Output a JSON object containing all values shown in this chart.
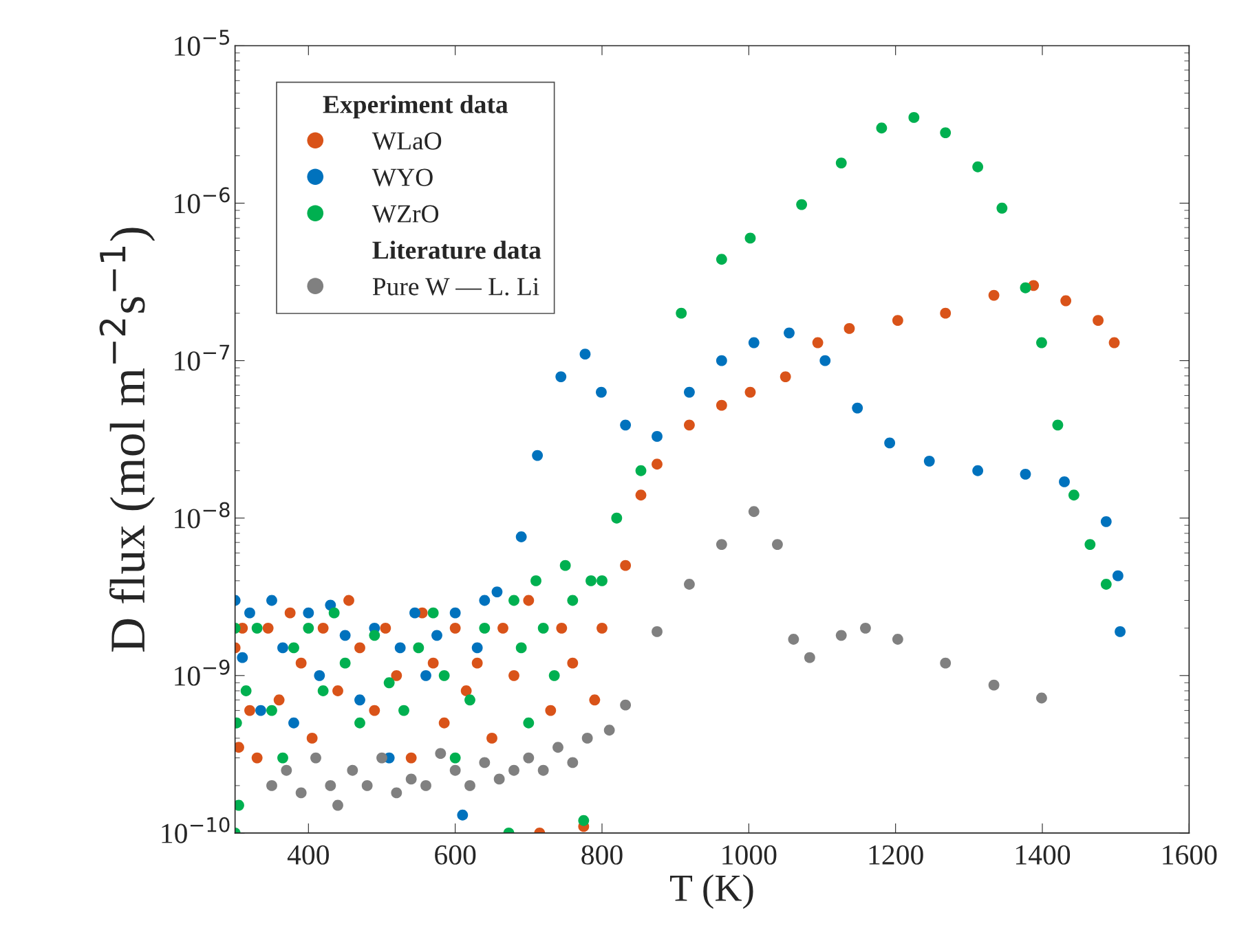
{
  "chart_data": {
    "type": "scatter",
    "xlabel": "T (K)",
    "ylabel": "D flux (mol m$^{−2}$s$^{−1}$)",
    "log": "y",
    "xlim": [
      300,
      1600
    ],
    "xticks": [
      400,
      600,
      800,
      1000,
      1200,
      1400,
      1600
    ],
    "ylim": [
      1e-10,
      1e-05
    ],
    "yticks": [
      {
        "value": 1e-10,
        "label": "10$^{−10}$"
      },
      {
        "value": 1e-09,
        "label": "10$^{−9}$"
      },
      {
        "value": 1e-08,
        "label": "10$^{−8}$"
      },
      {
        "value": 1e-07,
        "label": "10$^{−7}$"
      },
      {
        "value": 1e-06,
        "label": "10$^{−6}$"
      },
      {
        "value": 1e-05,
        "label": "10$^{−5}$"
      }
    ],
    "grid": false,
    "legend": "top left",
    "marker": "circle",
    "legend_title": "Experiment data",
    "annotations": [
      "Literature data"
    ],
    "series": [
      {
        "name": "WLaO",
        "color": "#d95319",
        "x": [
          300,
          305,
          310,
          320,
          330,
          345,
          360,
          375,
          390,
          405,
          420,
          440,
          455,
          470,
          490,
          505,
          520,
          540,
          555,
          570,
          585,
          600,
          615,
          630,
          650,
          665,
          680,
          700,
          715,
          730,
          745,
          760,
          775,
          790,
          800,
          832,
          853,
          875,
          919,
          963,
          1002,
          1050,
          1094,
          1137,
          1203,
          1268,
          1334,
          1388,
          1432,
          1476,
          1498
        ],
        "values": [
          1.5e-09,
          3.5e-10,
          2e-09,
          6e-10,
          3e-10,
          2e-09,
          7e-10,
          2.5e-09,
          1.2e-09,
          4e-10,
          2e-09,
          8e-10,
          3e-09,
          1.5e-09,
          6e-10,
          2e-09,
          1e-09,
          3e-10,
          2.5e-09,
          1.2e-09,
          5e-10,
          2e-09,
          8e-10,
          1.2e-09,
          4e-10,
          2e-09,
          1e-09,
          3e-09,
          1e-10,
          6e-10,
          2e-09,
          1.2e-09,
          1.1e-10,
          7e-10,
          2e-09,
          5e-09,
          1.4e-08,
          2.2e-08,
          3.9e-08,
          5.2e-08,
          6.3e-08,
          7.9e-08,
          1.3e-07,
          1.6e-07,
          1.8e-07,
          2e-07,
          2.6e-07,
          3e-07,
          2.4e-07,
          1.8e-07,
          1.3e-07
        ]
      },
      {
        "name": "WYO",
        "color": "#0072bd",
        "x": [
          300,
          310,
          320,
          335,
          350,
          365,
          380,
          400,
          415,
          430,
          450,
          470,
          490,
          510,
          525,
          545,
          560,
          575,
          600,
          610,
          630,
          640,
          657,
          690,
          712,
          744,
          777,
          799,
          832,
          875,
          919,
          963,
          1007,
          1055,
          1104,
          1148,
          1192,
          1246,
          1312,
          1377,
          1430,
          1487,
          1503,
          1506
        ],
        "values": [
          3e-09,
          1.3e-09,
          2.5e-09,
          6e-10,
          3e-09,
          1.5e-09,
          5e-10,
          2.5e-09,
          1e-09,
          2.8e-09,
          1.8e-09,
          7e-10,
          2e-09,
          3e-10,
          1.5e-09,
          2.5e-09,
          1e-09,
          1.8e-09,
          2.5e-09,
          1.3e-10,
          1.5e-09,
          3e-09,
          3.4e-09,
          7.6e-09,
          2.5e-08,
          7.9e-08,
          1.1e-07,
          6.3e-08,
          3.9e-08,
          3.3e-08,
          6.3e-08,
          1e-07,
          1.3e-07,
          1.5e-07,
          1e-07,
          5e-08,
          3e-08,
          2.3e-08,
          2e-08,
          1.9e-08,
          1.7e-08,
          9.5e-09,
          4.3e-09,
          1.9e-09
        ]
      },
      {
        "name": "WZrO",
        "color": "#00b050",
        "x": [
          300,
          300,
          302,
          305,
          315,
          330,
          350,
          365,
          380,
          400,
          420,
          435,
          450,
          470,
          490,
          510,
          530,
          550,
          570,
          585,
          600,
          620,
          640,
          673,
          680,
          690,
          700,
          710,
          720,
          735,
          750,
          760,
          775,
          785,
          800,
          820,
          853,
          908,
          963,
          1002,
          1072,
          1126,
          1181,
          1225,
          1268,
          1312,
          1345,
          1377,
          1399,
          1421,
          1443,
          1465,
          1487
        ],
        "values": [
          1e-10,
          2e-09,
          5e-10,
          1.5e-10,
          8e-10,
          2e-09,
          6e-10,
          3e-10,
          1.5e-09,
          2e-09,
          8e-10,
          2.5e-09,
          1.2e-09,
          5e-10,
          1.8e-09,
          9e-10,
          6e-10,
          1.5e-09,
          2.5e-09,
          1e-09,
          3e-10,
          7e-10,
          2e-09,
          1e-10,
          3e-09,
          1.5e-09,
          5e-10,
          4e-09,
          2e-09,
          1e-09,
          5e-09,
          3e-09,
          1.2e-10,
          4e-09,
          4e-09,
          1e-08,
          2e-08,
          2e-07,
          4.4e-07,
          6e-07,
          9.8e-07,
          1.8e-06,
          3e-06,
          3.5e-06,
          2.8e-06,
          1.7e-06,
          9.3e-07,
          2.9e-07,
          1.3e-07,
          3.9e-08,
          1.4e-08,
          6.8e-09,
          3.8e-09
        ]
      },
      {
        "name": "Pure W — L. Li",
        "color": "#808080",
        "x": [
          350,
          370,
          390,
          410,
          430,
          440,
          460,
          480,
          500,
          520,
          540,
          560,
          580,
          600,
          620,
          640,
          660,
          680,
          700,
          720,
          740,
          760,
          780,
          810,
          832,
          875,
          919,
          963,
          1007,
          1039,
          1061,
          1083,
          1126,
          1159,
          1203,
          1268,
          1334,
          1399
        ],
        "values": [
          2e-10,
          2.5e-10,
          1.8e-10,
          3e-10,
          2e-10,
          1.5e-10,
          2.5e-10,
          2e-10,
          3e-10,
          1.8e-10,
          2.2e-10,
          2e-10,
          3.2e-10,
          2.5e-10,
          2e-10,
          2.8e-10,
          2.2e-10,
          2.5e-10,
          3e-10,
          2.5e-10,
          3.5e-10,
          2.8e-10,
          4e-10,
          4.5e-10,
          6.5e-10,
          1.9e-09,
          3.8e-09,
          6.8e-09,
          1.1e-08,
          6.8e-09,
          1.7e-09,
          1.3e-09,
          1.8e-09,
          2e-09,
          1.7e-09,
          1.2e-09,
          8.7e-10,
          7.2e-10
        ]
      }
    ]
  }
}
